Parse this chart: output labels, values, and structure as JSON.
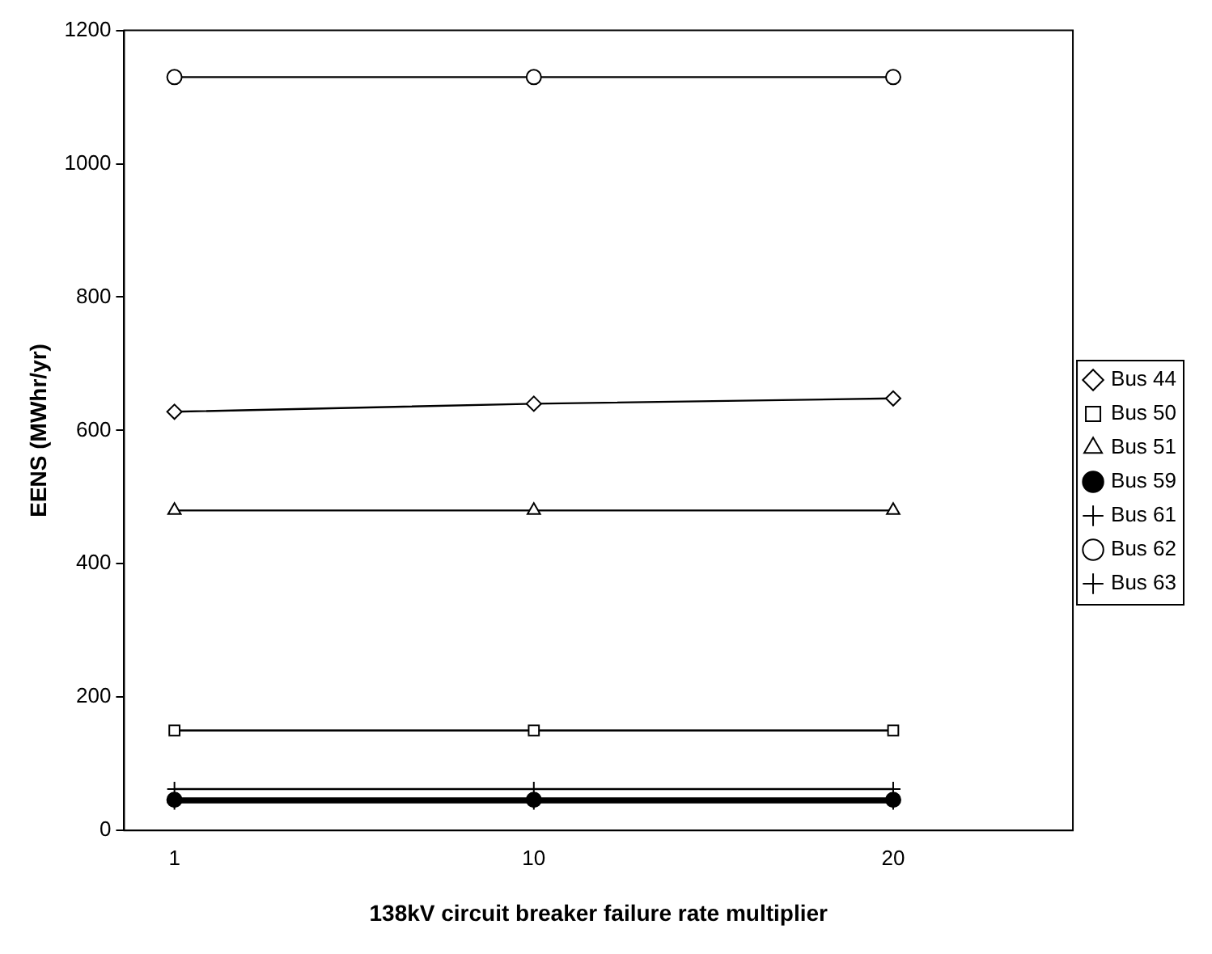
{
  "chart_data": {
    "type": "line",
    "xlabel": "138kV circuit breaker failure rate multiplier",
    "ylabel": "EENS (MWhr/yr)",
    "categories": [
      "1",
      "10",
      "20"
    ],
    "series": [
      {
        "name": "Bus 44",
        "color": "#000000",
        "marker": "diamond",
        "values": [
          628,
          640,
          648
        ]
      },
      {
        "name": "Bus 50",
        "color": "#000000",
        "marker": "square",
        "values": [
          150,
          150,
          150
        ]
      },
      {
        "name": "Bus 51",
        "color": "#000000",
        "marker": "triangle",
        "values": [
          480,
          480,
          480
        ]
      },
      {
        "name": "Bus 59",
        "color": "#000000",
        "marker": "circle",
        "values": [
          46,
          46,
          46
        ]
      },
      {
        "name": "Bus 61",
        "color": "#000000",
        "marker": "cross",
        "values": [
          62,
          62,
          62
        ]
      },
      {
        "name": "Bus 62",
        "color": "#000000",
        "marker": "circle",
        "values": [
          1130,
          1130,
          1130
        ]
      },
      {
        "name": "Bus 63",
        "color": "#000000",
        "marker": "cross",
        "values": [
          42,
          42,
          42
        ]
      }
    ],
    "ylim": [
      0,
      1200
    ],
    "yticks": [
      0,
      200,
      400,
      600,
      800,
      1000,
      1200
    ],
    "grid": false,
    "legend": "right"
  }
}
